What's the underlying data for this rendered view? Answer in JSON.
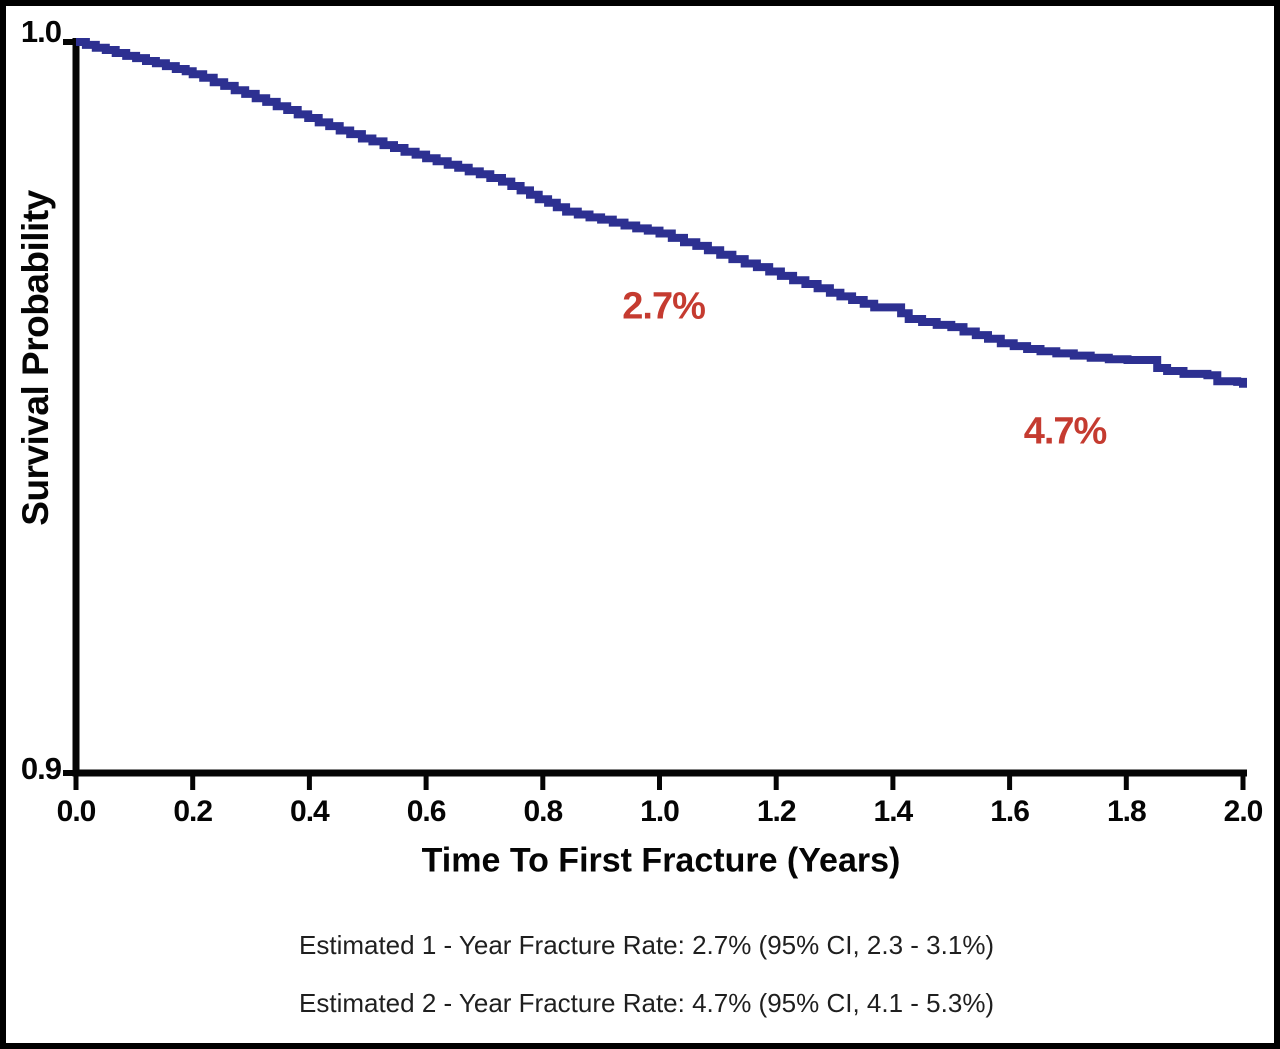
{
  "chart_data": {
    "type": "line",
    "subtype": "kaplan_meier_step",
    "title": "",
    "xlabel": "Time To First Fracture (Years)",
    "ylabel": "Survival Probability",
    "xlim": [
      0.0,
      2.0
    ],
    "ylim": [
      0.9,
      1.0
    ],
    "x_tick_labels": [
      "0.0",
      "0.2",
      "0.4",
      "0.6",
      "0.8",
      "1.0",
      "1.2",
      "1.4",
      "1.6",
      "1.8",
      "2.0"
    ],
    "y_tick_labels": [
      "1.0",
      "0.9"
    ],
    "y_tick_values": [
      1.0,
      0.9
    ],
    "grid": false,
    "legend": "none",
    "line_color": "#2d3091",
    "axis_color": "#050505",
    "annotation_color": "#c53b30",
    "annotations": [
      {
        "text": "2.7%",
        "x": 1.007,
        "y": 0.9637
      },
      {
        "text": "4.7%",
        "x": 1.695,
        "y": 0.9466
      }
    ],
    "series": [
      {
        "name": "survival_probability",
        "points": [
          [
            0.0,
            1.0
          ],
          [
            0.017,
            0.9996
          ],
          [
            0.034,
            0.9992
          ],
          [
            0.051,
            0.9989
          ],
          [
            0.068,
            0.9985
          ],
          [
            0.086,
            0.9981
          ],
          [
            0.103,
            0.9978
          ],
          [
            0.12,
            0.9974
          ],
          [
            0.137,
            0.9971
          ],
          [
            0.154,
            0.9967
          ],
          [
            0.171,
            0.9963
          ],
          [
            0.188,
            0.996
          ],
          [
            0.2,
            0.9956
          ],
          [
            0.218,
            0.9951
          ],
          [
            0.236,
            0.9945
          ],
          [
            0.254,
            0.994
          ],
          [
            0.272,
            0.9934
          ],
          [
            0.29,
            0.9929
          ],
          [
            0.308,
            0.9923
          ],
          [
            0.326,
            0.9918
          ],
          [
            0.344,
            0.9912
          ],
          [
            0.362,
            0.9907
          ],
          [
            0.38,
            0.9901
          ],
          [
            0.398,
            0.9896
          ],
          [
            0.416,
            0.989
          ],
          [
            0.434,
            0.9885
          ],
          [
            0.452,
            0.9879
          ],
          [
            0.47,
            0.9874
          ],
          [
            0.49,
            0.9868
          ],
          [
            0.508,
            0.9864
          ],
          [
            0.527,
            0.9859
          ],
          [
            0.545,
            0.9855
          ],
          [
            0.563,
            0.985
          ],
          [
            0.582,
            0.9846
          ],
          [
            0.6,
            0.9841
          ],
          [
            0.618,
            0.9837
          ],
          [
            0.637,
            0.9832
          ],
          [
            0.655,
            0.9828
          ],
          [
            0.673,
            0.9823
          ],
          [
            0.692,
            0.9819
          ],
          [
            0.71,
            0.9814
          ],
          [
            0.73,
            0.9809
          ],
          [
            0.746,
            0.9803
          ],
          [
            0.762,
            0.9797
          ],
          [
            0.778,
            0.9791
          ],
          [
            0.793,
            0.9785
          ],
          [
            0.809,
            0.978
          ],
          [
            0.824,
            0.9774
          ],
          [
            0.84,
            0.9768
          ],
          [
            0.86,
            0.9764
          ],
          [
            0.88,
            0.976
          ],
          [
            0.9,
            0.9757
          ],
          [
            0.92,
            0.9753
          ],
          [
            0.94,
            0.9749
          ],
          [
            0.96,
            0.9745
          ],
          [
            0.98,
            0.9742
          ],
          [
            1.0,
            0.9738
          ],
          [
            1.021,
            0.9732
          ],
          [
            1.042,
            0.9726
          ],
          [
            1.063,
            0.9721
          ],
          [
            1.083,
            0.9715
          ],
          [
            1.104,
            0.9709
          ],
          [
            1.125,
            0.9703
          ],
          [
            1.146,
            0.9697
          ],
          [
            1.167,
            0.9692
          ],
          [
            1.188,
            0.9686
          ],
          [
            1.208,
            0.968
          ],
          [
            1.229,
            0.9674
          ],
          [
            1.25,
            0.9669
          ],
          [
            1.271,
            0.9663
          ],
          [
            1.292,
            0.9657
          ],
          [
            1.31,
            0.9652
          ],
          [
            1.33,
            0.9647
          ],
          [
            1.35,
            0.9642
          ],
          [
            1.368,
            0.9637
          ],
          [
            1.414,
            0.9629
          ],
          [
            1.427,
            0.9621
          ],
          [
            1.45,
            0.9617
          ],
          [
            1.475,
            0.9613
          ],
          [
            1.5,
            0.961
          ],
          [
            1.521,
            0.9604
          ],
          [
            1.542,
            0.9599
          ],
          [
            1.563,
            0.9594
          ],
          [
            1.585,
            0.9588
          ],
          [
            1.607,
            0.9584
          ],
          [
            1.63,
            0.958
          ],
          [
            1.653,
            0.9577
          ],
          [
            1.68,
            0.9574
          ],
          [
            1.71,
            0.9571
          ],
          [
            1.739,
            0.9568
          ],
          [
            1.77,
            0.9566
          ],
          [
            1.802,
            0.9565
          ],
          [
            1.853,
            0.9554
          ],
          [
            1.87,
            0.955
          ],
          [
            1.898,
            0.9546
          ],
          [
            1.939,
            0.9544
          ],
          [
            1.956,
            0.9536
          ],
          [
            1.99,
            0.9535
          ],
          [
            2.0,
            0.9527
          ]
        ]
      }
    ],
    "estimates": [
      {
        "label": "Estimated 1 - Year Fracture Rate",
        "value": "2.7%",
        "ci": "95% CI, 2.3 - 3.1%"
      },
      {
        "label": "Estimated 2 - Year Fracture Rate",
        "value": "4.7%",
        "ci": "95% CI, 4.1 - 5.3%"
      }
    ]
  },
  "captions": {
    "line1": "Estimated 1 - Year Fracture Rate: 2.7% (95% CI, 2.3 - 3.1%)",
    "line2": "Estimated 2 - Year Fracture Rate: 4.7% (95% CI, 4.1 - 5.3%)"
  }
}
